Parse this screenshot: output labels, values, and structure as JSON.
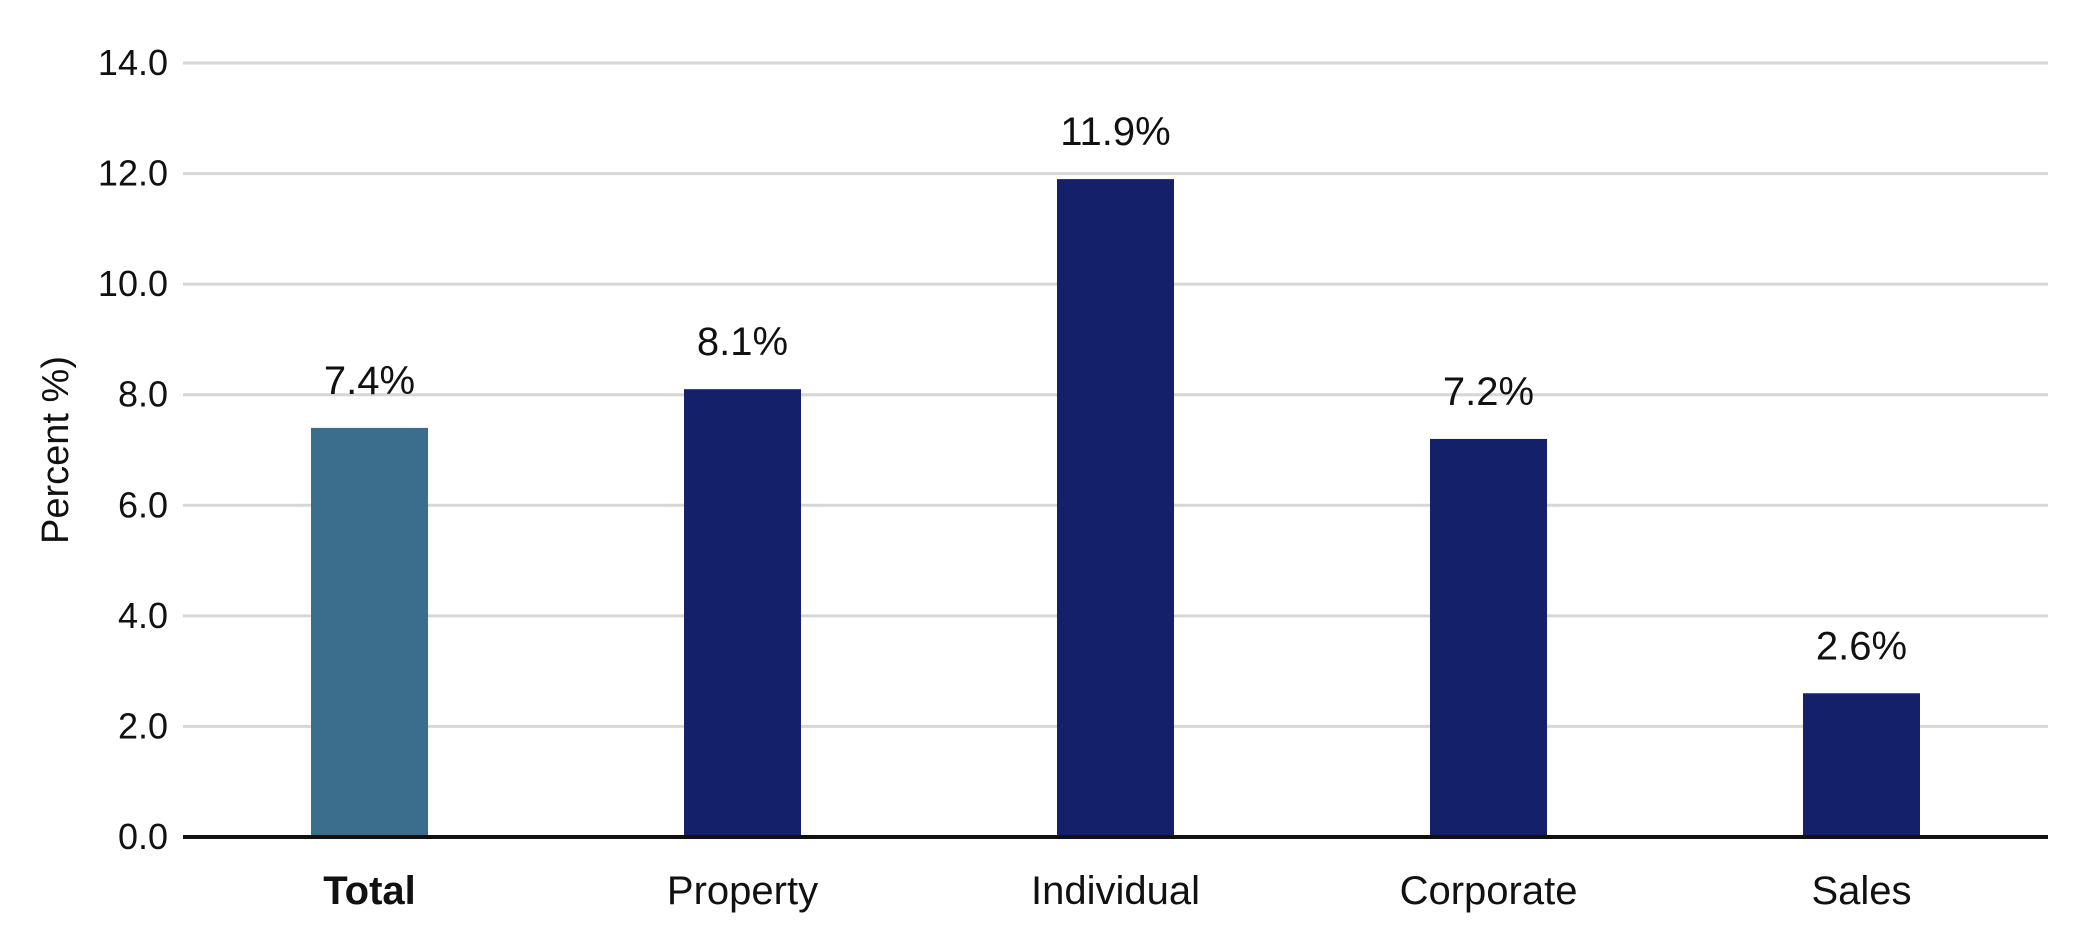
{
  "chart_data": {
    "type": "bar",
    "title": "",
    "xlabel": "",
    "ylabel": "Percent %)",
    "categories": [
      "Total",
      "Property",
      "Individual",
      "Corporate",
      "Sales"
    ],
    "values": [
      7.4,
      8.1,
      11.9,
      7.2,
      2.6
    ],
    "data_labels": [
      "7.4%",
      "8.1%",
      "11.9%",
      "7.2%",
      "2.6%"
    ],
    "ylim": [
      0,
      14
    ],
    "yticks": [
      0,
      2,
      4,
      6,
      8,
      10,
      12,
      14
    ],
    "ytick_labels": [
      "0.0",
      "2.0",
      "4.0",
      "6.0",
      "8.0",
      "10.0",
      "12.0",
      "14.0"
    ],
    "grid": true,
    "legend": "none",
    "highlight_category": "Total",
    "colors": {
      "highlight_bar": "#3b6d8c",
      "bar": "#15206a",
      "grid": "#d6d6d6",
      "axis": "#111111"
    }
  }
}
